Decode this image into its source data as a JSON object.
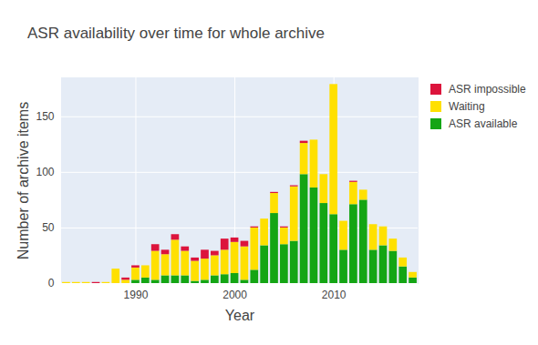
{
  "chart_data": {
    "type": "bar",
    "title": "ASR availability over time for whole archive",
    "x_label": "Year",
    "y_label": "Number of archive items",
    "x": [
      1983,
      1984,
      1985,
      1986,
      1987,
      1988,
      1989,
      1990,
      1991,
      1992,
      1993,
      1994,
      1995,
      1996,
      1997,
      1998,
      1999,
      2000,
      2001,
      2002,
      2003,
      2004,
      2005,
      2006,
      2007,
      2008,
      2009,
      2010,
      2011,
      2012,
      2013,
      2014,
      2015,
      2016,
      2017,
      2018
    ],
    "series": [
      {
        "name": "ASR available",
        "color": "#14a514",
        "values": [
          0,
          0,
          0,
          0,
          0,
          0,
          0,
          3,
          5,
          3,
          7,
          7,
          7,
          2,
          3,
          7,
          8,
          9,
          3,
          12,
          34,
          63,
          35,
          38,
          98,
          86,
          72,
          62,
          30,
          71,
          75,
          30,
          34,
          29,
          15,
          5
        ]
      },
      {
        "name": "Waiting",
        "color": "#ffe000",
        "values": [
          1,
          1,
          1,
          0,
          1,
          13,
          3,
          11,
          11,
          26,
          19,
          32,
          22,
          18,
          19,
          18,
          22,
          28,
          30,
          38,
          24,
          18,
          15,
          49,
          28,
          43,
          26,
          117,
          26,
          20,
          9,
          23,
          17,
          11,
          8,
          5
        ]
      },
      {
        "name": "ASR impossible",
        "color": "#dc143c",
        "values": [
          0,
          0,
          0,
          1,
          0,
          0,
          2,
          2,
          0,
          6,
          4,
          5,
          4,
          3,
          8,
          4,
          10,
          4,
          5,
          1,
          0,
          1,
          1,
          1,
          2,
          0,
          0,
          0,
          0,
          1,
          0,
          0,
          0,
          0,
          0,
          0
        ]
      }
    ],
    "xlim": [
      1982.5,
      2018.5
    ],
    "xticks": [
      1990,
      2000,
      2010
    ],
    "ylim": [
      0,
      185
    ],
    "yticks": [
      0,
      50,
      100,
      150
    ],
    "stacked": true,
    "grid": true,
    "legend": "right"
  }
}
